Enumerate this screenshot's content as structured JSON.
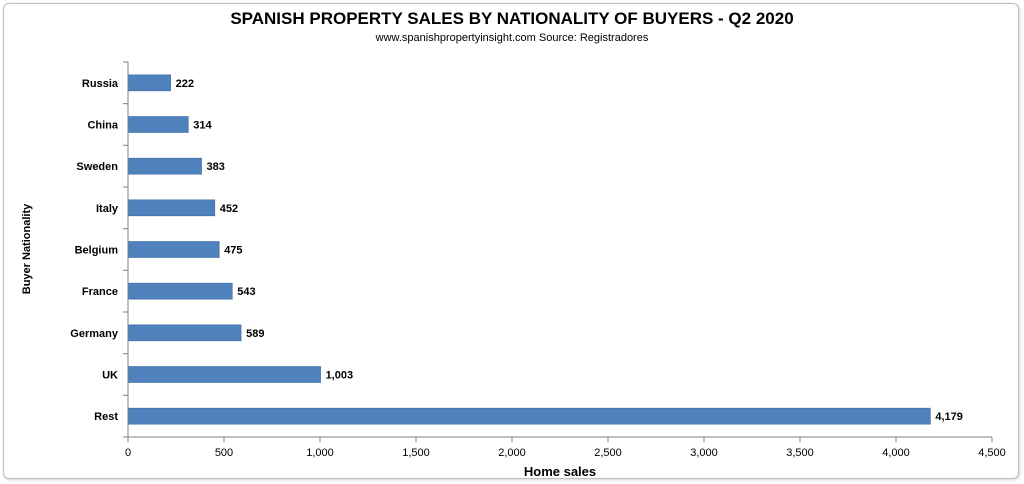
{
  "chart_data": {
    "type": "bar",
    "orientation": "horizontal",
    "title": "SPANISH PROPERTY SALES BY NATIONALITY OF BUYERS - Q2 2020",
    "subtitle": "www.spanishpropertyinsight.com Source: Registradores",
    "xlabel": "Home sales",
    "ylabel": "Buyer Nationality",
    "categories": [
      "Russia",
      "China",
      "Sweden",
      "Italy",
      "Belgium",
      "France",
      "Germany",
      "UK",
      "Rest"
    ],
    "values": [
      222,
      314,
      383,
      452,
      475,
      543,
      589,
      1003,
      4179
    ],
    "value_labels": [
      "222",
      "314",
      "383",
      "452",
      "475",
      "543",
      "589",
      "1,003",
      "4,179"
    ],
    "xlim": [
      0,
      4500
    ],
    "xticks": [
      0,
      500,
      1000,
      1500,
      2000,
      2500,
      3000,
      3500,
      4000,
      4500
    ],
    "xtick_labels": [
      "0",
      "500",
      "1,000",
      "1,500",
      "2,000",
      "2,500",
      "3,000",
      "3,500",
      "4,000",
      "4,500"
    ],
    "bar_color": "#4F81BD",
    "grid": false,
    "legend": "none"
  }
}
